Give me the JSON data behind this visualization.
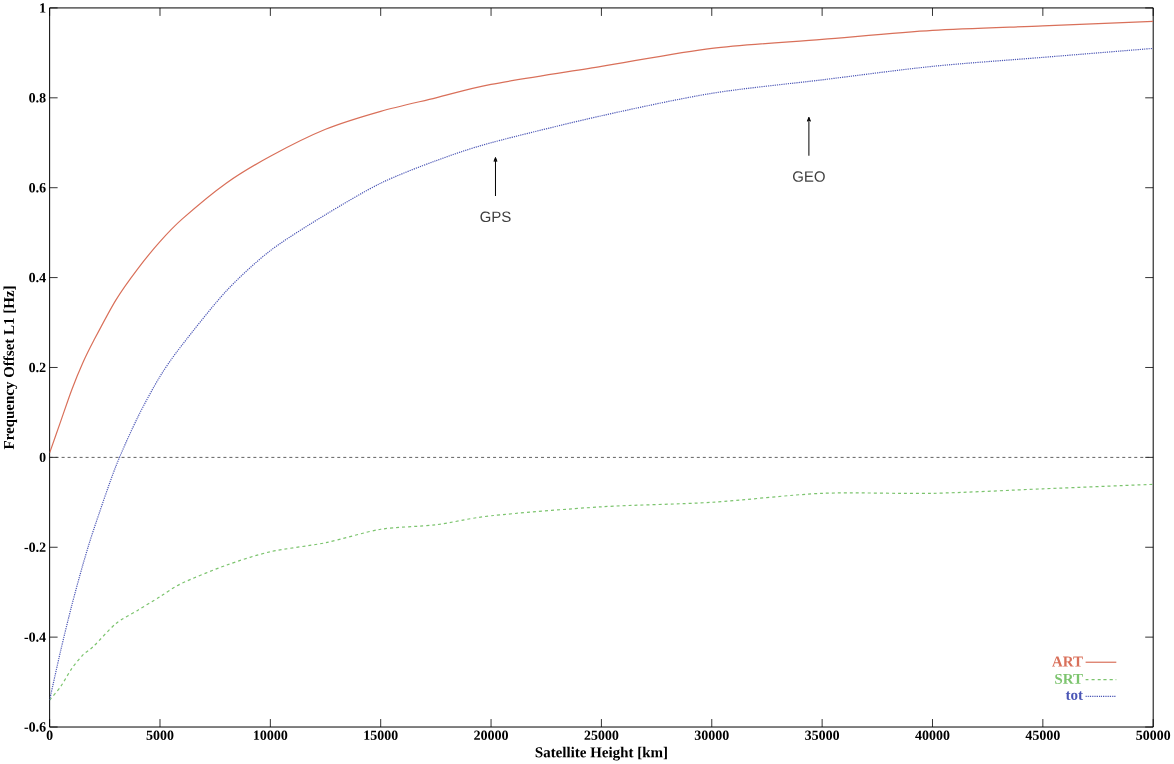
{
  "chart_data": {
    "type": "line",
    "xlabel": "Satellite Height [km]",
    "ylabel": "Frequency Offset L1 [Hz]",
    "x": [
      0,
      500,
      1000,
      1500,
      2000,
      3000,
      4000,
      5000,
      6000,
      8000,
      10000,
      12500,
      15000,
      17500,
      20000,
      25000,
      30000,
      35000,
      40000,
      45000,
      50000
    ],
    "series": [
      {
        "name": "ART",
        "color": "#d9705a",
        "line_style": "solid",
        "values": [
          0.01,
          0.08,
          0.15,
          0.21,
          0.26,
          0.35,
          0.42,
          0.48,
          0.53,
          0.61,
          0.67,
          0.73,
          0.77,
          0.8,
          0.83,
          0.87,
          0.91,
          0.93,
          0.95,
          0.96,
          0.97
        ]
      },
      {
        "name": "SRT",
        "color": "#7cc46e",
        "line_style": "dashed",
        "values": [
          -0.54,
          -0.51,
          -0.47,
          -0.44,
          -0.42,
          -0.37,
          -0.34,
          -0.31,
          -0.28,
          -0.24,
          -0.21,
          -0.19,
          -0.16,
          -0.15,
          -0.13,
          -0.11,
          -0.1,
          -0.08,
          -0.08,
          -0.07,
          -0.06
        ]
      },
      {
        "name": "tot",
        "color": "#4a55b5",
        "line_style": "dotted",
        "values": [
          -0.54,
          -0.43,
          -0.33,
          -0.24,
          -0.16,
          -0.02,
          0.09,
          0.18,
          0.25,
          0.37,
          0.46,
          0.54,
          0.61,
          0.66,
          0.7,
          0.76,
          0.81,
          0.84,
          0.87,
          0.89,
          0.91
        ]
      }
    ],
    "xlim": [
      0,
      50000
    ],
    "ylim": [
      -0.6,
      1
    ],
    "xticks": [
      0,
      5000,
      10000,
      15000,
      20000,
      25000,
      30000,
      35000,
      40000,
      45000,
      50000
    ],
    "yticks": [
      -0.6,
      -0.4,
      -0.2,
      0,
      0.2,
      0.4,
      0.6,
      0.8,
      1
    ],
    "ref_lines": [
      {
        "axis": "y",
        "value": 0,
        "color": "#333333",
        "line_style": "dashed"
      }
    ],
    "annotations": [
      "GPS",
      "GEO"
    ],
    "legend": "bottom right",
    "grid": false,
    "marker": "none"
  }
}
